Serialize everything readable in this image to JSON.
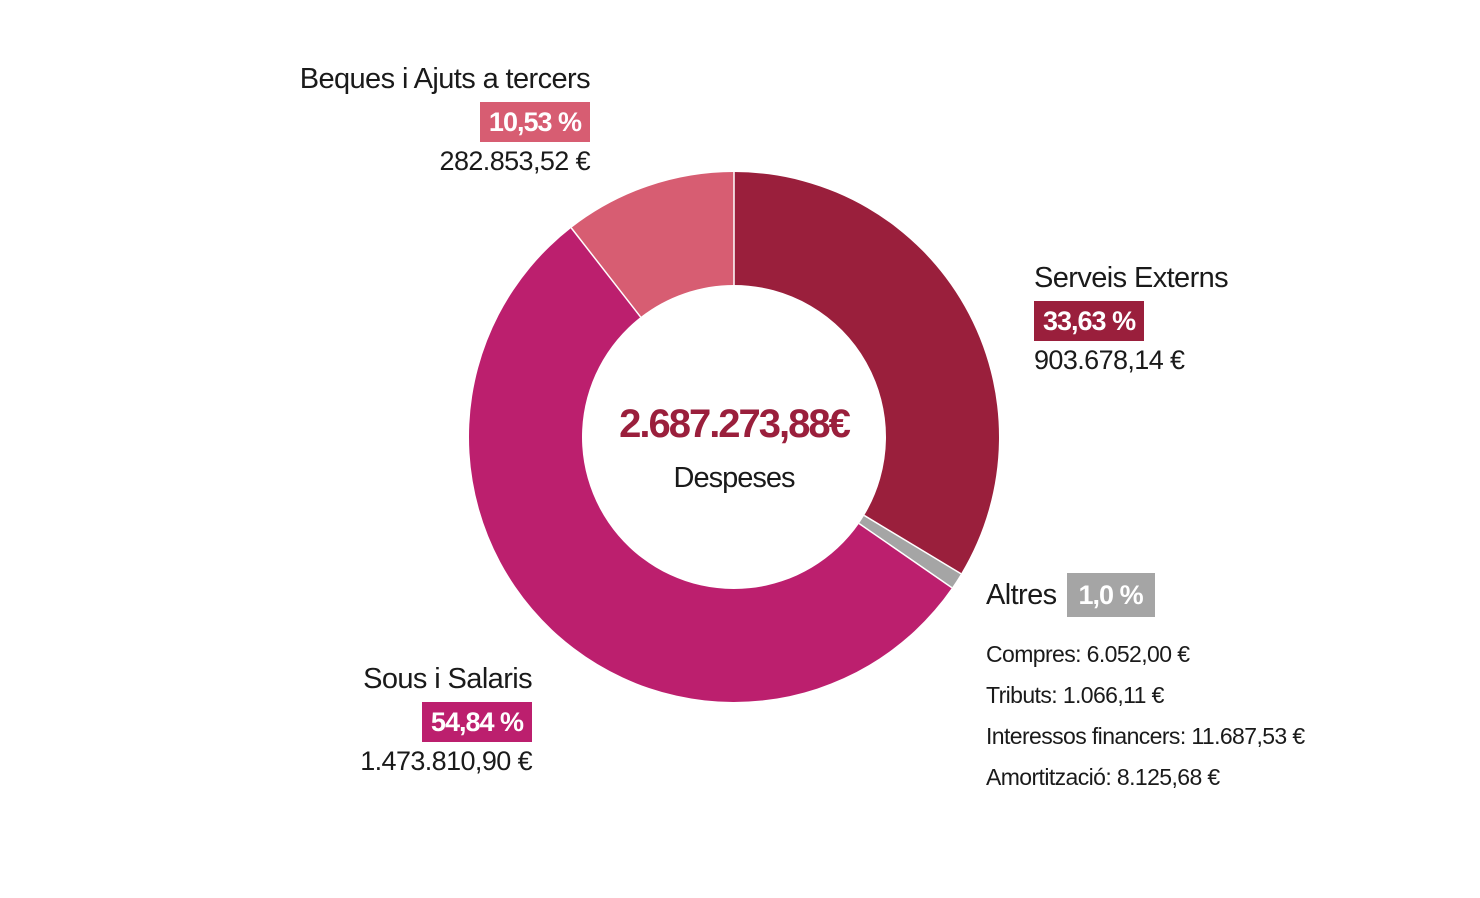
{
  "chart_data": {
    "type": "pie",
    "donut": true,
    "center": {
      "total": "2.687.273,88€",
      "label": "Despeses"
    },
    "slices": [
      {
        "name": "Serveis Externs",
        "value": 903678.14,
        "percent_label": "33,63 %",
        "amount_label": "903.678,14 €",
        "color": "#9a1f3c"
      },
      {
        "name": "Altres",
        "value": 26931.32,
        "percent_label": "1,0 %",
        "color": "#a5a5a5"
      },
      {
        "name": "Sous i Salaris",
        "value": 1473810.9,
        "percent_label": "54,84 %",
        "amount_label": "1.473.810,90 €",
        "color": "#bc1f6e"
      },
      {
        "name": "Beques i Ajuts a tercers",
        "value": 282853.52,
        "percent_label": "10,53 %",
        "amount_label": "282.853,52 €",
        "color": "#d75d72"
      }
    ],
    "altres_breakdown": [
      "Compres: 6.052,00 €",
      "Tributs: 1.066,11 €",
      "Interessos financers: 11.687,53 €",
      "Amortització: 8.125,68 €"
    ]
  },
  "colors": {
    "total_text": "#9a1f3c",
    "separator": "#ffffff"
  }
}
